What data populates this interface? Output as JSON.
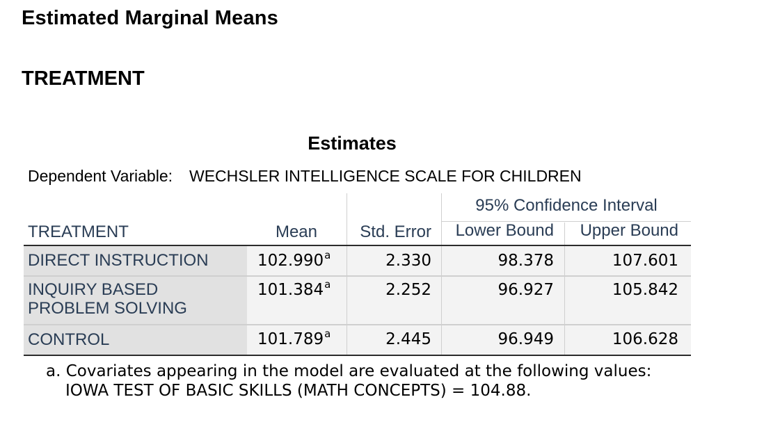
{
  "headings": {
    "section": "Estimated Marginal Means",
    "factor": "TREATMENT"
  },
  "table": {
    "title": "Estimates",
    "dependent_variable_label": "Dependent Variable:",
    "dependent_variable_value": "WECHSLER INTELLIGENCE SCALE FOR CHILDREN",
    "ci_header": "95% Confidence Interval",
    "columns": {
      "treatment": "TREATMENT",
      "mean": "Mean",
      "std_error": "Std. Error",
      "lower": "Lower Bound",
      "upper": "Upper Bound"
    },
    "rows": [
      {
        "label": "DIRECT INSTRUCTION",
        "mean": "102.990",
        "mean_note": "a",
        "std_error": "2.330",
        "lower": "98.378",
        "upper": "107.601"
      },
      {
        "label": "INQUIRY BASED PROBLEM SOLVING",
        "mean": "101.384",
        "mean_note": "a",
        "std_error": "2.252",
        "lower": "96.927",
        "upper": "105.842"
      },
      {
        "label": "CONTROL",
        "mean": "101.789",
        "mean_note": "a",
        "std_error": "2.445",
        "lower": "96.949",
        "upper": "106.628"
      }
    ]
  },
  "footnote": {
    "line1": "a. Covariates appearing in the model are evaluated at the following values:",
    "line2": "IOWA TEST OF BASIC SKILLS (MATH CONCEPTS) = 104.88."
  }
}
